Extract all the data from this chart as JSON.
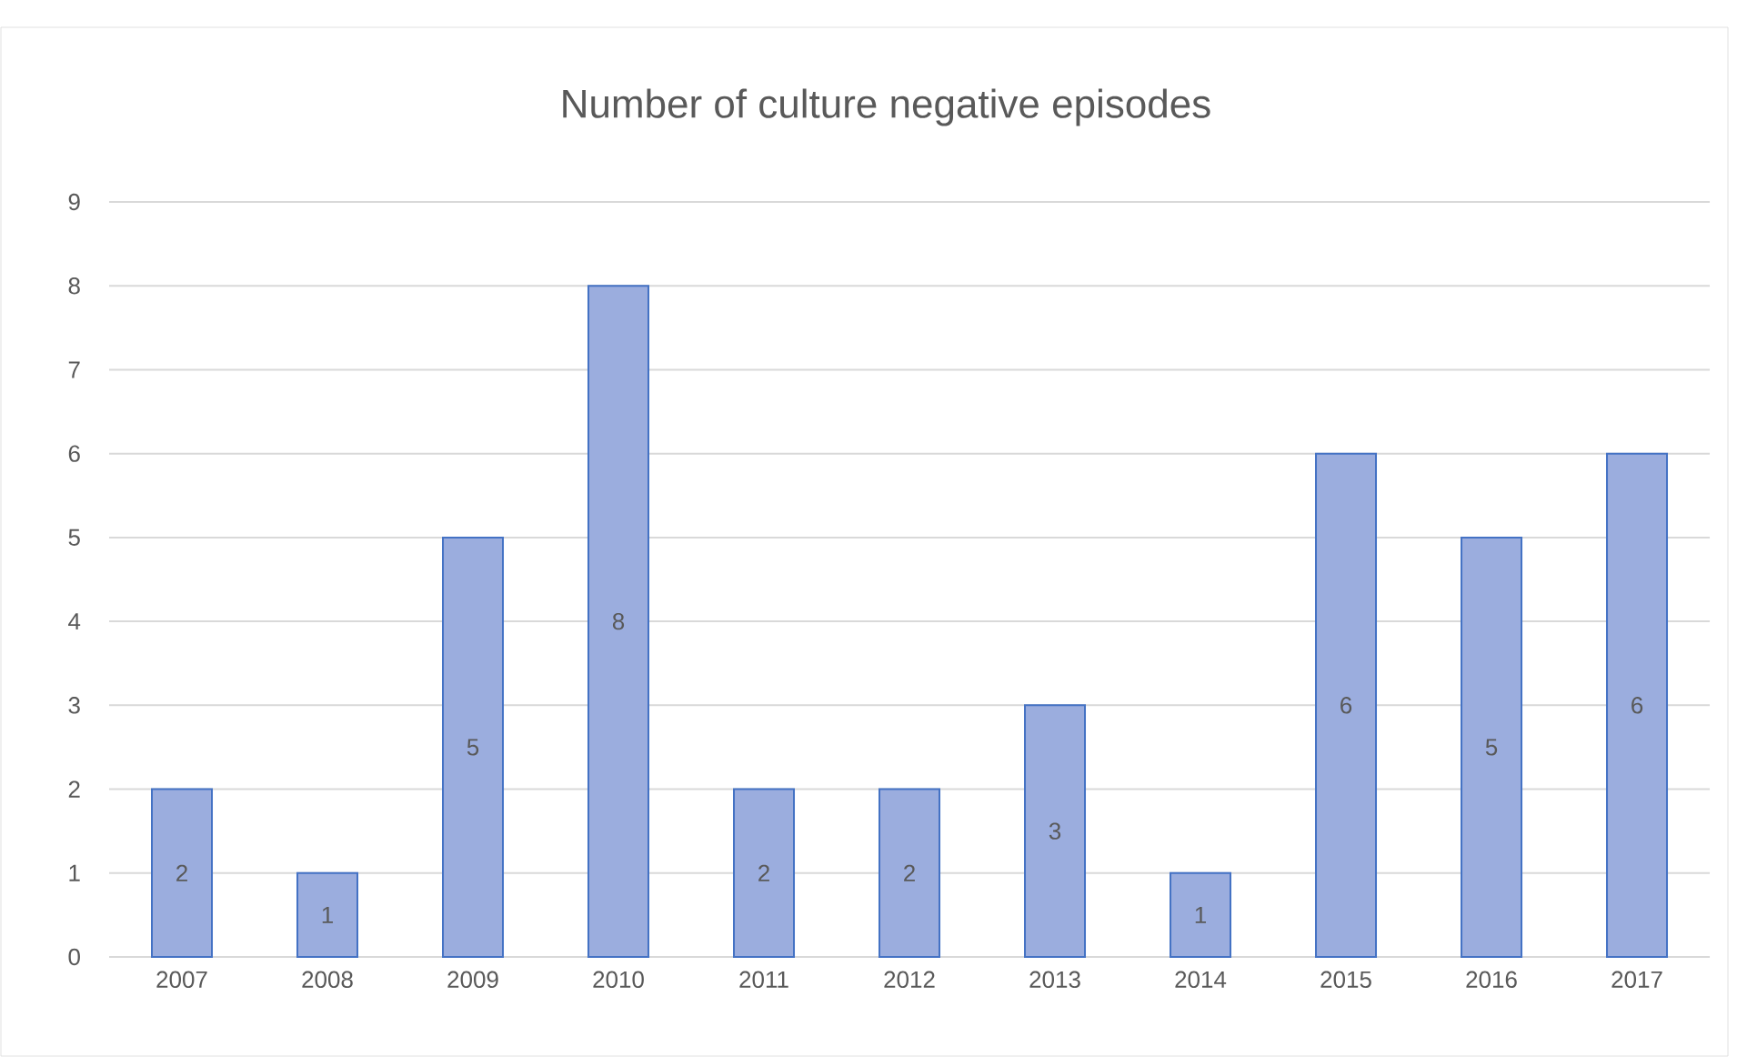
{
  "chart_data": {
    "type": "bar",
    "title": "Number of culture negative episodes",
    "categories": [
      "2007",
      "2008",
      "2009",
      "2010",
      "2011",
      "2012",
      "2013",
      "2014",
      "2015",
      "2016",
      "2017"
    ],
    "values": [
      2,
      1,
      5,
      8,
      2,
      2,
      3,
      1,
      6,
      5,
      6
    ],
    "color": "#9badde",
    "ylim": [
      0,
      9
    ],
    "yticks": [
      0,
      1,
      2,
      3,
      4,
      5,
      6,
      7,
      8,
      9
    ],
    "grid": "y",
    "data_labels": true
  }
}
